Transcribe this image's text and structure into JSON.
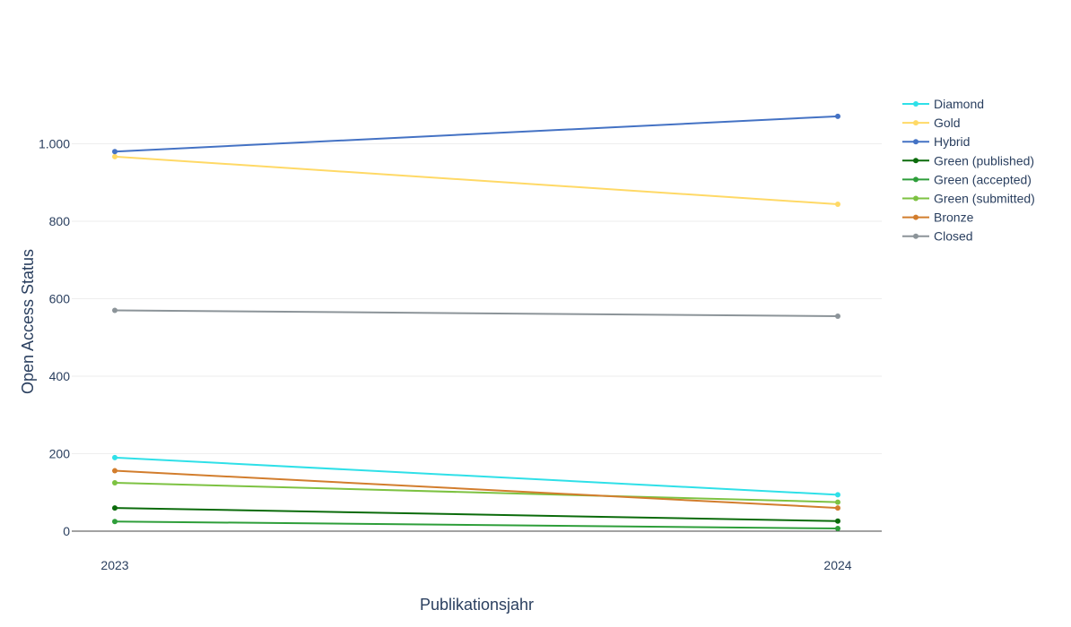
{
  "chart_data": {
    "type": "line",
    "categories": [
      "2023",
      "2024"
    ],
    "xlabel": "Publikationsjahr",
    "ylabel": "Open Access Status",
    "ylim": [
      -30,
      1140
    ],
    "yticks": [
      0,
      200,
      400,
      600,
      800,
      1000
    ],
    "ytick_labels": [
      "0",
      "200",
      "400",
      "600",
      "800",
      "1.000"
    ],
    "grid": true,
    "legend_position": "right",
    "series": [
      {
        "name": "Diamond",
        "color": "#2fe0e8",
        "values": [
          190,
          94
        ]
      },
      {
        "name": "Gold",
        "color": "#ffd966",
        "values": [
          967,
          844
        ]
      },
      {
        "name": "Hybrid",
        "color": "#4472c4",
        "values": [
          980,
          1071
        ]
      },
      {
        "name": "Green (published)",
        "color": "#0b6b0b",
        "values": [
          60,
          26
        ]
      },
      {
        "name": "Green (accepted)",
        "color": "#2e9e3a",
        "values": [
          25,
          7
        ]
      },
      {
        "name": "Green (submitted)",
        "color": "#7dc242",
        "values": [
          125,
          75
        ]
      },
      {
        "name": "Bronze",
        "color": "#d27d2d",
        "values": [
          156,
          60
        ]
      },
      {
        "name": "Closed",
        "color": "#8c9499",
        "values": [
          570,
          555
        ]
      }
    ]
  }
}
